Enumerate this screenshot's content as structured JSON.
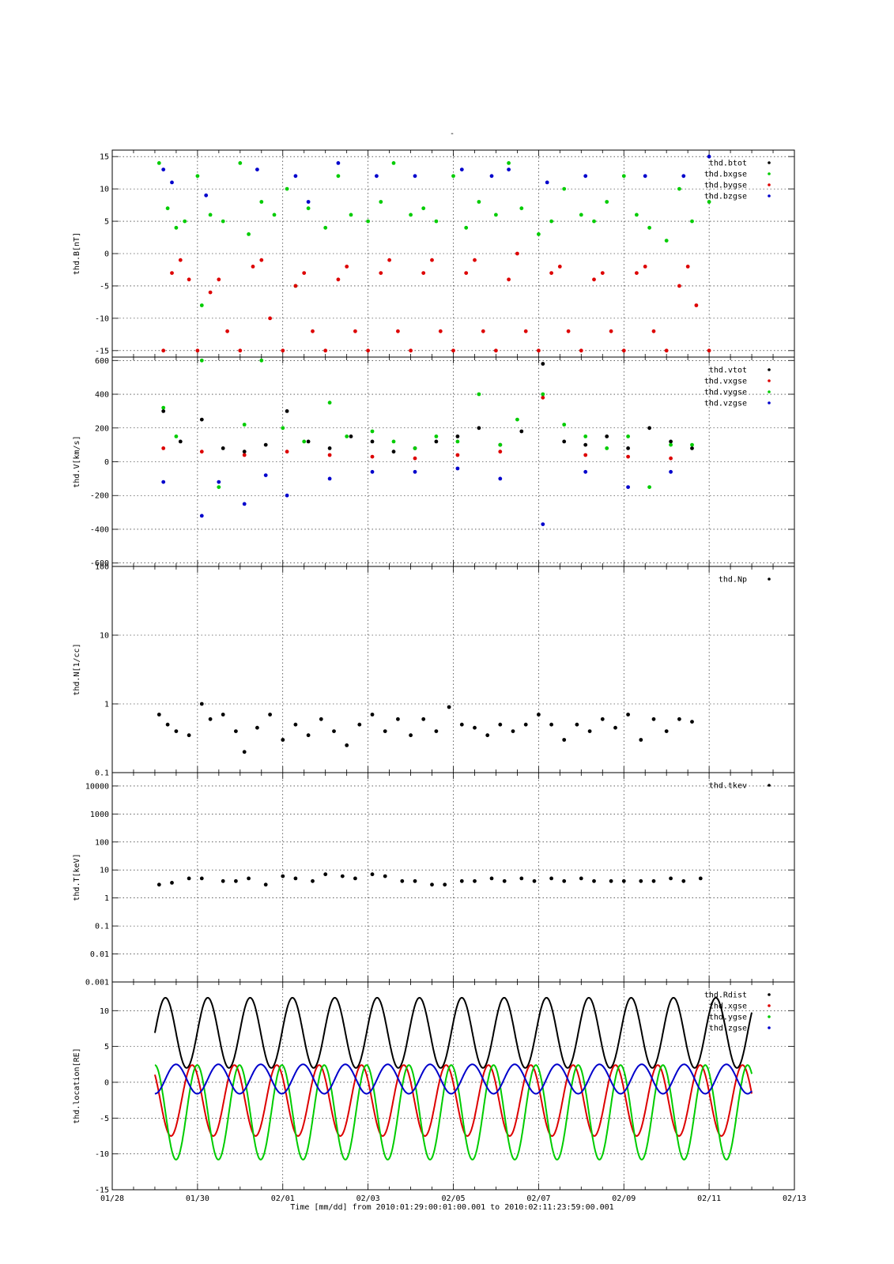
{
  "figure": {
    "title": "-",
    "xlabel": "Time [mm/dd]  from 2010:01:29:00:01:00.001  to  2010:02:11:23:59:00.001"
  },
  "chart_data": [
    {
      "type": "scatter",
      "ylabel": "thd.B[nT]",
      "yscale": "linear",
      "ylim": [
        -16,
        16
      ],
      "yticks": [
        15,
        10,
        5,
        0,
        -5,
        -10,
        -15
      ],
      "ytick_labels": [
        "15",
        "10",
        "5",
        "0",
        "-5",
        "-10",
        "-15"
      ],
      "xlim": [
        0,
        16
      ],
      "grid": true,
      "legend_position": "top-right",
      "series": [
        {
          "name": "thd.btot",
          "color": "#000000",
          "x": [],
          "y": []
        },
        {
          "name": "thd.bxgse",
          "color": "#00cc00",
          "x": [
            1.1,
            1.3,
            1.5,
            1.7,
            2.0,
            2.1,
            2.3,
            2.6,
            3.0,
            3.2,
            3.5,
            3.8,
            4.1,
            4.3,
            4.6,
            5.0,
            5.3,
            5.6,
            6.0,
            6.3,
            6.6,
            7.0,
            7.3,
            7.6,
            8.0,
            8.3,
            8.6,
            9.0,
            9.3,
            9.6,
            10.0,
            10.3,
            10.6,
            11.0,
            11.3,
            11.6,
            12.0,
            12.3,
            12.6,
            13.0,
            13.3,
            13.6,
            14.0
          ],
          "y": [
            14,
            7,
            4,
            5,
            12,
            -8,
            6,
            5,
            14,
            3,
            8,
            6,
            10,
            -5,
            7,
            4,
            12,
            6,
            5,
            8,
            14,
            6,
            7,
            5,
            12,
            4,
            8,
            6,
            14,
            7,
            3,
            5,
            10,
            6,
            5,
            8,
            12,
            6,
            4,
            2,
            10,
            5,
            8
          ]
        },
        {
          "name": "thd.bygse",
          "color": "#dd0000",
          "x": [
            1.2,
            1.4,
            1.6,
            1.8,
            2.0,
            2.3,
            2.5,
            2.7,
            3.0,
            3.3,
            3.5,
            3.7,
            4.0,
            4.3,
            4.5,
            4.7,
            5.0,
            5.3,
            5.5,
            5.7,
            6.0,
            6.3,
            6.5,
            6.7,
            7.0,
            7.3,
            7.5,
            7.7,
            8.0,
            8.3,
            8.5,
            8.7,
            9.0,
            9.3,
            9.5,
            9.7,
            10.0,
            10.3,
            10.5,
            10.7,
            11.0,
            11.3,
            11.5,
            11.7,
            12.0,
            12.3,
            12.5,
            12.7,
            13.0,
            13.3,
            13.5,
            13.7,
            14.0
          ],
          "y": [
            -15,
            -3,
            -1,
            -4,
            -15,
            -6,
            -4,
            -12,
            -15,
            -2,
            -1,
            -10,
            -15,
            -5,
            -3,
            -12,
            -15,
            -4,
            -2,
            -12,
            -15,
            -3,
            -1,
            -12,
            -15,
            -3,
            -1,
            -12,
            -15,
            -3,
            -1,
            -12,
            -15,
            -4,
            0,
            -12,
            -15,
            -3,
            -2,
            -12,
            -15,
            -4,
            -3,
            -12,
            -15,
            -3,
            -2,
            -12,
            -15,
            -5,
            -2,
            -8,
            -15
          ]
        },
        {
          "name": "thd.bzgse",
          "color": "#0000cc",
          "x": [
            1.2,
            1.4,
            2.2,
            3.4,
            4.3,
            4.6,
            5.3,
            6.2,
            7.1,
            8.2,
            8.9,
            9.3,
            10.2,
            11.1,
            12.5,
            13.4,
            14.0
          ],
          "y": [
            13,
            11,
            9,
            13,
            12,
            8,
            14,
            12,
            12,
            13,
            12,
            13,
            11,
            12,
            12,
            12,
            15
          ]
        }
      ]
    },
    {
      "type": "scatter",
      "ylabel": "thd.V[km/s]",
      "yscale": "linear",
      "ylim": [
        -620,
        620
      ],
      "yticks": [
        600,
        400,
        200,
        0,
        -200,
        -400,
        -600
      ],
      "ytick_labels": [
        "600",
        "400",
        "200",
        "0",
        "-200",
        "-400",
        "-600"
      ],
      "xlim": [
        0,
        16
      ],
      "grid": true,
      "legend_position": "top-right",
      "series": [
        {
          "name": "thd.vtot",
          "color": "#000000",
          "x": [
            1.2,
            1.6,
            2.1,
            2.6,
            3.1,
            3.6,
            4.1,
            4.6,
            5.1,
            5.6,
            6.1,
            6.6,
            7.1,
            7.6,
            8.1,
            8.6,
            9.1,
            9.6,
            10.1,
            10.6,
            11.1,
            11.6,
            12.1,
            12.6,
            13.1,
            13.6
          ],
          "y": [
            300,
            120,
            250,
            80,
            60,
            100,
            300,
            120,
            80,
            150,
            120,
            60,
            80,
            120,
            150,
            200,
            100,
            180,
            580,
            120,
            100,
            150,
            80,
            200,
            120,
            80
          ]
        },
        {
          "name": "thd.vxgse",
          "color": "#dd0000",
          "x": [
            1.2,
            2.1,
            3.1,
            4.1,
            5.1,
            6.1,
            7.1,
            8.1,
            9.1,
            10.1,
            11.1,
            12.1,
            13.1
          ],
          "y": [
            80,
            60,
            40,
            60,
            40,
            30,
            20,
            40,
            60,
            380,
            40,
            30,
            20
          ]
        },
        {
          "name": "thd.vygse",
          "color": "#00cc00",
          "x": [
            1.2,
            1.5,
            2.1,
            2.5,
            3.1,
            3.5,
            4.0,
            4.5,
            5.1,
            5.5,
            6.1,
            6.6,
            7.1,
            7.6,
            8.1,
            8.6,
            9.1,
            9.5,
            10.1,
            10.6,
            11.1,
            11.6,
            12.1,
            12.6,
            13.1,
            13.6
          ],
          "y": [
            320,
            150,
            600,
            -150,
            220,
            600,
            200,
            120,
            350,
            150,
            180,
            120,
            80,
            150,
            120,
            400,
            100,
            250,
            400,
            220,
            150,
            80,
            150,
            -150,
            100,
            100
          ]
        },
        {
          "name": "thd.vzgse",
          "color": "#0000cc",
          "x": [
            1.2,
            2.1,
            2.5,
            3.1,
            3.6,
            4.1,
            5.1,
            6.1,
            7.1,
            8.1,
            9.1,
            10.1,
            11.1,
            12.1,
            13.1
          ],
          "y": [
            -120,
            -320,
            -120,
            -250,
            -80,
            -200,
            -100,
            -60,
            -60,
            -40,
            -100,
            -370,
            -60,
            -150,
            -60
          ]
        }
      ]
    },
    {
      "type": "scatter",
      "ylabel": "thd.N[1/cc]",
      "yscale": "log",
      "ylim": [
        0.1,
        100
      ],
      "yticks": [
        100,
        10,
        1,
        0.1
      ],
      "ytick_labels": [
        "100",
        "10",
        "1",
        "0.1"
      ],
      "xlim": [
        0,
        16
      ],
      "grid": true,
      "legend_position": "top-right",
      "series": [
        {
          "name": "thd.Np",
          "color": "#000000",
          "x": [
            1.1,
            1.3,
            1.5,
            1.8,
            2.1,
            2.3,
            2.6,
            2.9,
            3.1,
            3.4,
            3.7,
            4.0,
            4.3,
            4.6,
            4.9,
            5.2,
            5.5,
            5.8,
            6.1,
            6.4,
            6.7,
            7.0,
            7.3,
            7.6,
            7.9,
            8.2,
            8.5,
            8.8,
            9.1,
            9.4,
            9.7,
            10.0,
            10.3,
            10.6,
            10.9,
            11.2,
            11.5,
            11.8,
            12.1,
            12.4,
            12.7,
            13.0,
            13.3,
            13.6
          ],
          "y": [
            0.7,
            0.5,
            0.4,
            0.35,
            1.0,
            0.6,
            0.7,
            0.4,
            0.2,
            0.45,
            0.7,
            0.3,
            0.5,
            0.35,
            0.6,
            0.4,
            0.25,
            0.5,
            0.7,
            0.4,
            0.6,
            0.35,
            0.6,
            0.4,
            0.9,
            0.5,
            0.45,
            0.35,
            0.5,
            0.4,
            0.5,
            0.7,
            0.5,
            0.3,
            0.5,
            0.4,
            0.6,
            0.45,
            0.7,
            0.3,
            0.6,
            0.4,
            0.6,
            0.55
          ]
        }
      ]
    },
    {
      "type": "scatter",
      "ylabel": "thd.T[keV]",
      "yscale": "log",
      "ylim": [
        0.001,
        30000
      ],
      "yticks": [
        10000,
        1000,
        100,
        10,
        1,
        0.1,
        0.01,
        0.001
      ],
      "ytick_labels": [
        "10000",
        "1000",
        "100",
        "10",
        "1",
        "0.1",
        "0.01",
        "0.001"
      ],
      "xlim": [
        0,
        16
      ],
      "grid": true,
      "legend_position": "top-right",
      "series": [
        {
          "name": "thd.tkev",
          "color": "#000000",
          "x": [
            1.1,
            1.4,
            1.8,
            2.1,
            2.6,
            2.9,
            3.2,
            3.6,
            4.0,
            4.3,
            4.7,
            5.0,
            5.4,
            5.7,
            6.1,
            6.4,
            6.8,
            7.1,
            7.5,
            7.8,
            8.2,
            8.5,
            8.9,
            9.2,
            9.6,
            9.9,
            10.3,
            10.6,
            11.0,
            11.3,
            11.7,
            12.0,
            12.4,
            12.7,
            13.1,
            13.4,
            13.8
          ],
          "y": [
            3,
            3.5,
            5,
            5,
            4,
            4,
            5,
            3,
            6,
            5,
            4,
            7,
            6,
            5,
            7,
            6,
            4,
            4,
            3,
            3,
            4,
            4,
            5,
            4,
            5,
            4,
            5,
            4,
            5,
            4,
            4,
            4,
            4,
            4,
            5,
            4,
            5
          ]
        }
      ]
    },
    {
      "type": "line",
      "ylabel": "thd.location[RE]",
      "yscale": "linear",
      "ylim": [
        -15,
        14
      ],
      "yticks": [
        10,
        5,
        0,
        -5,
        -10,
        -15
      ],
      "ytick_labels": [
        "10",
        "5",
        "0",
        "-5",
        "-10",
        "-15"
      ],
      "xlim": [
        0,
        16
      ],
      "xticks": [
        0,
        2,
        4,
        6,
        8,
        10,
        12,
        14,
        16
      ],
      "xtick_labels": [
        "01/28",
        "01/30",
        "02/01",
        "02/03",
        "02/05",
        "02/07",
        "02/09",
        "02/11",
        "02/13"
      ],
      "grid": true,
      "legend_position": "top-right",
      "orbit_period_days": 0.993,
      "series": [
        {
          "name": "thd.Rdist",
          "color": "#000000",
          "x_range": [
            1.0,
            15.0
          ],
          "y_range": [
            2.0,
            11.8
          ]
        },
        {
          "name": "thd.xgse",
          "color": "#dd0000",
          "x_range": [
            1.0,
            15.0
          ],
          "y_range": [
            -7.5,
            2.4
          ]
        },
        {
          "name": "thd.ygse",
          "color": "#00cc00",
          "x_range": [
            1.0,
            15.0
          ],
          "y_range": [
            -10.8,
            2.4
          ]
        },
        {
          "name": "thd.zgse",
          "color": "#0000cc",
          "x_range": [
            1.0,
            15.0
          ],
          "y_range": [
            -1.6,
            2.5
          ]
        }
      ]
    }
  ]
}
